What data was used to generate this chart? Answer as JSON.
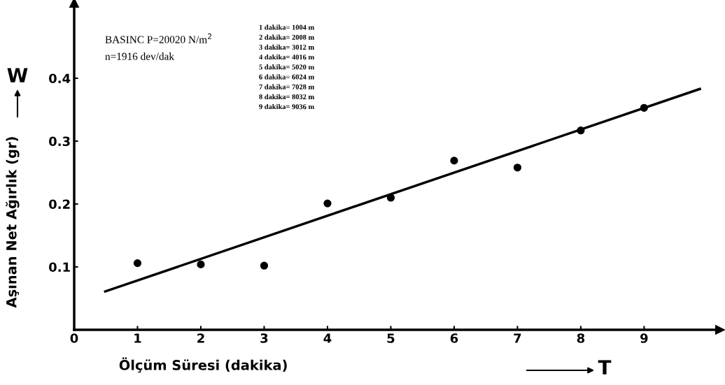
{
  "chart_data": {
    "type": "scatter",
    "xlabel": "Ölçüm Süresi (dakika)",
    "ylabel": "Aşınan Net Ağırlık (gr)",
    "annotations": [
      "W",
      "T",
      "BASINC P=20020 N/m$^{2}$",
      "n=1916 dev/dak",
      "1 dakika= 1004 m",
      "2 dakika= 2008 m",
      "3 dakika= 3012 m",
      "4 dakika= 4016 m",
      "5 dakika= 5020 m",
      "6 dakika= 6024 m",
      "7 dakika= 7028 m",
      "8 dakika= 8032 m",
      "9 dakika= 9036 m"
    ],
    "x": [
      1,
      2,
      3,
      4,
      5,
      6,
      7,
      8,
      9
    ],
    "series": [
      {
        "color": "#000000",
        "marker": "circle",
        "values": [
          0.106,
          0.104,
          0.102,
          0.201,
          0.21,
          0.269,
          0.258,
          0.317,
          0.353
        ]
      },
      {
        "type": "line",
        "color": "#000000",
        "marker": "none",
        "line_style": "solid",
        "x": [
          0.49,
          9.88
        ],
        "values": [
          0.061,
          0.383
        ]
      }
    ],
    "xlim": [
      0,
      10.2
    ],
    "ylim": [
      0,
      0.52
    ],
    "xticks": [
      0,
      1,
      2,
      3,
      4,
      5,
      6,
      7,
      8,
      9
    ],
    "yticks": [
      0.1,
      0.2,
      0.3,
      0.4
    ],
    "grid": false,
    "legend": false
  }
}
